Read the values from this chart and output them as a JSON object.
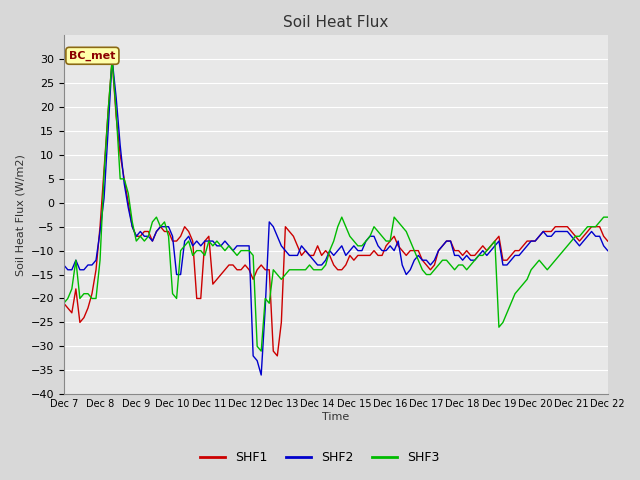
{
  "title": "Soil Heat Flux",
  "ylabel": "Soil Heat Flux (W/m2)",
  "xlabel": "Time",
  "ylim": [
    -40,
    35
  ],
  "bg_color": "#d8d8d8",
  "plot_bg": "#e8e8e8",
  "grid_color": "#ffffff",
  "annotation_text": "BC_met",
  "annotation_bg": "#ffffaa",
  "annotation_border": "#8B6914",
  "annotation_text_color": "#8B0000",
  "line_colors": {
    "SHF1": "#cc0000",
    "SHF2": "#0000cc",
    "SHF3": "#00bb00"
  },
  "xtick_labels": [
    "Dec 7",
    "Dec 8",
    "Dec 9",
    "Dec 10",
    "Dec 11",
    "Dec 12",
    "Dec 13",
    "Dec 14",
    "Dec 15",
    "Dec 16",
    "Dec 17",
    "Dec 18",
    "Dec 19",
    "Dec 20",
    "Dec 21",
    "Dec 22"
  ],
  "SHF1": [
    -21,
    -22,
    -23,
    -18,
    -25,
    -24,
    -22,
    -19,
    -14,
    -5,
    7,
    19,
    30,
    18,
    10,
    5,
    0,
    -5,
    -7,
    -7,
    -6,
    -6,
    -8,
    -6,
    -5,
    -6,
    -6,
    -8,
    -8,
    -7,
    -5,
    -6,
    -8,
    -20,
    -20,
    -8,
    -7,
    -17,
    -16,
    -15,
    -14,
    -13,
    -13,
    -14,
    -14,
    -13,
    -14,
    -16,
    -14,
    -13,
    -14,
    -14,
    -31,
    -32,
    -25,
    -5,
    -6,
    -7,
    -9,
    -11,
    -10,
    -11,
    -11,
    -9,
    -11,
    -10,
    -11,
    -13,
    -14,
    -14,
    -13,
    -11,
    -12,
    -11,
    -11,
    -11,
    -11,
    -10,
    -11,
    -11,
    -9,
    -8,
    -7,
    -9,
    -10,
    -11,
    -10,
    -10,
    -10,
    -12,
    -13,
    -14,
    -13,
    -10,
    -9,
    -8,
    -8,
    -10,
    -10,
    -11,
    -10,
    -11,
    -11,
    -10,
    -9,
    -10,
    -9,
    -8,
    -7,
    -12,
    -12,
    -11,
    -10,
    -10,
    -9,
    -8,
    -8,
    -8,
    -7,
    -6,
    -6,
    -6,
    -5,
    -5,
    -5,
    -5,
    -6,
    -7,
    -8,
    -7,
    -6,
    -5,
    -5,
    -5,
    -7,
    -8
  ],
  "SHF2": [
    -13,
    -14,
    -14,
    -12,
    -14,
    -14,
    -13,
    -13,
    -12,
    -6,
    1,
    15,
    30,
    22,
    12,
    4,
    -1,
    -5,
    -7,
    -6,
    -7,
    -7,
    -8,
    -6,
    -5,
    -5,
    -5,
    -7,
    -15,
    -15,
    -8,
    -7,
    -9,
    -8,
    -9,
    -8,
    -8,
    -8,
    -9,
    -9,
    -8,
    -9,
    -10,
    -9,
    -9,
    -9,
    -9,
    -32,
    -33,
    -36,
    -22,
    -4,
    -5,
    -7,
    -9,
    -10,
    -11,
    -11,
    -11,
    -9,
    -10,
    -11,
    -12,
    -13,
    -13,
    -12,
    -10,
    -11,
    -10,
    -9,
    -11,
    -10,
    -9,
    -10,
    -10,
    -8,
    -7,
    -7,
    -9,
    -10,
    -10,
    -9,
    -10,
    -8,
    -13,
    -15,
    -14,
    -12,
    -11,
    -12,
    -12,
    -13,
    -12,
    -10,
    -9,
    -8,
    -8,
    -11,
    -11,
    -12,
    -11,
    -12,
    -12,
    -11,
    -10,
    -11,
    -10,
    -9,
    -8,
    -13,
    -13,
    -12,
    -11,
    -11,
    -10,
    -9,
    -8,
    -8,
    -7,
    -6,
    -7,
    -7,
    -6,
    -6,
    -6,
    -6,
    -7,
    -8,
    -9,
    -8,
    -7,
    -6,
    -7,
    -7,
    -9,
    -10
  ],
  "SHF3": [
    -21,
    -20,
    -18,
    -12,
    -20,
    -19,
    -19,
    -20,
    -20,
    -12,
    6,
    19,
    30,
    19,
    5,
    5,
    2,
    -4,
    -8,
    -7,
    -8,
    -7,
    -4,
    -3,
    -5,
    -4,
    -7,
    -19,
    -20,
    -10,
    -9,
    -8,
    -11,
    -10,
    -10,
    -11,
    -8,
    -9,
    -8,
    -9,
    -10,
    -9,
    -10,
    -11,
    -10,
    -10,
    -10,
    -11,
    -30,
    -31,
    -20,
    -21,
    -14,
    -15,
    -16,
    -15,
    -14,
    -14,
    -14,
    -14,
    -14,
    -13,
    -14,
    -14,
    -14,
    -13,
    -10,
    -8,
    -5,
    -3,
    -5,
    -7,
    -8,
    -9,
    -9,
    -8,
    -7,
    -5,
    -6,
    -7,
    -8,
    -8,
    -3,
    -4,
    -5,
    -6,
    -8,
    -10,
    -12,
    -14,
    -15,
    -15,
    -14,
    -13,
    -12,
    -12,
    -13,
    -14,
    -13,
    -13,
    -14,
    -13,
    -12,
    -11,
    -11,
    -10,
    -9,
    -8,
    -26,
    -25,
    -23,
    -21,
    -19,
    -18,
    -17,
    -16,
    -14,
    -13,
    -12,
    -13,
    -14,
    -13,
    -12,
    -11,
    -10,
    -9,
    -8,
    -7,
    -7,
    -6,
    -5,
    -5,
    -5,
    -4,
    -3,
    -3
  ]
}
